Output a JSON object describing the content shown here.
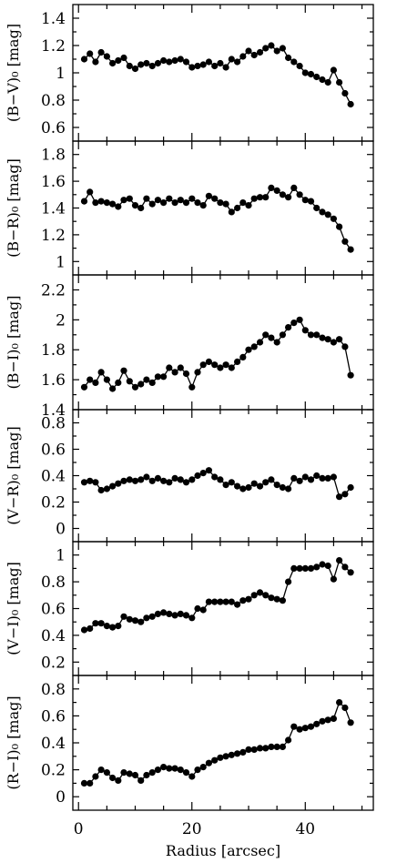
{
  "chart_data": [
    {
      "type": "line",
      "ylabel": "(B−V)₀ [mag]",
      "ylim": [
        0.5,
        1.5
      ],
      "yticks": [
        0.6,
        0.8,
        1,
        1.2,
        1.4
      ],
      "ytick_labels": [
        "0.6",
        "0.8",
        "1",
        "1.2",
        "1.4"
      ],
      "x": [
        1,
        2,
        3,
        4,
        5,
        6,
        7,
        8,
        9,
        10,
        11,
        12,
        13,
        14,
        15,
        16,
        17,
        18,
        19,
        20,
        21,
        22,
        23,
        24,
        25,
        26,
        27,
        28,
        29,
        30,
        31,
        32,
        33,
        34,
        35,
        36,
        37,
        38,
        39,
        40,
        41,
        42,
        43,
        44,
        45,
        46,
        47,
        48
      ],
      "values": [
        1.1,
        1.14,
        1.08,
        1.15,
        1.12,
        1.07,
        1.09,
        1.11,
        1.05,
        1.03,
        1.06,
        1.07,
        1.05,
        1.07,
        1.09,
        1.08,
        1.09,
        1.1,
        1.08,
        1.04,
        1.05,
        1.06,
        1.08,
        1.05,
        1.07,
        1.04,
        1.1,
        1.08,
        1.12,
        1.16,
        1.13,
        1.15,
        1.18,
        1.2,
        1.16,
        1.18,
        1.11,
        1.08,
        1.05,
        1.0,
        0.99,
        0.97,
        0.95,
        0.93,
        1.02,
        0.93,
        0.85,
        0.77
      ]
    },
    {
      "type": "line",
      "ylabel": "(B−R)₀ [mag]",
      "ylim": [
        0.9,
        1.9
      ],
      "yticks": [
        1,
        1.2,
        1.4,
        1.6,
        1.8
      ],
      "ytick_labels": [
        "1",
        "1.2",
        "1.4",
        "1.6",
        "1.8"
      ],
      "x": [
        1,
        2,
        3,
        4,
        5,
        6,
        7,
        8,
        9,
        10,
        11,
        12,
        13,
        14,
        15,
        16,
        17,
        18,
        19,
        20,
        21,
        22,
        23,
        24,
        25,
        26,
        27,
        28,
        29,
        30,
        31,
        32,
        33,
        34,
        35,
        36,
        37,
        38,
        39,
        40,
        41,
        42,
        43,
        44,
        45,
        46,
        47,
        48
      ],
      "values": [
        1.45,
        1.52,
        1.44,
        1.45,
        1.44,
        1.43,
        1.41,
        1.46,
        1.47,
        1.42,
        1.4,
        1.47,
        1.43,
        1.46,
        1.44,
        1.47,
        1.44,
        1.46,
        1.44,
        1.47,
        1.44,
        1.42,
        1.49,
        1.47,
        1.44,
        1.43,
        1.37,
        1.4,
        1.44,
        1.42,
        1.47,
        1.48,
        1.48,
        1.55,
        1.53,
        1.5,
        1.48,
        1.55,
        1.5,
        1.46,
        1.45,
        1.4,
        1.37,
        1.35,
        1.32,
        1.26,
        1.15,
        1.09
      ]
    },
    {
      "type": "line",
      "ylabel": "(B−I)₀ [mag]",
      "ylim": [
        1.4,
        2.3
      ],
      "yticks": [
        1.4,
        1.6,
        1.8,
        2,
        2.2
      ],
      "ytick_labels": [
        "1.4",
        "1.6",
        "1.8",
        "2",
        "2.2"
      ],
      "x": [
        1,
        2,
        3,
        4,
        5,
        6,
        7,
        8,
        9,
        10,
        11,
        12,
        13,
        14,
        15,
        16,
        17,
        18,
        19,
        20,
        21,
        22,
        23,
        24,
        25,
        26,
        27,
        28,
        29,
        30,
        31,
        32,
        33,
        34,
        35,
        36,
        37,
        38,
        39,
        40,
        41,
        42,
        43,
        44,
        45,
        46,
        47,
        48
      ],
      "values": [
        1.55,
        1.6,
        1.58,
        1.65,
        1.6,
        1.54,
        1.58,
        1.66,
        1.59,
        1.55,
        1.57,
        1.6,
        1.58,
        1.62,
        1.62,
        1.68,
        1.65,
        1.68,
        1.64,
        1.55,
        1.65,
        1.7,
        1.72,
        1.7,
        1.68,
        1.7,
        1.68,
        1.72,
        1.75,
        1.8,
        1.82,
        1.85,
        1.9,
        1.88,
        1.85,
        1.9,
        1.95,
        1.98,
        2.0,
        1.93,
        1.9,
        1.9,
        1.88,
        1.87,
        1.85,
        1.87,
        1.82,
        1.63
      ]
    },
    {
      "type": "line",
      "ylabel": "(V−R)₀ [mag]",
      "ylim": [
        -0.1,
        0.9
      ],
      "yticks": [
        0,
        0.2,
        0.4,
        0.6,
        0.8
      ],
      "ytick_labels": [
        "0",
        "0.2",
        "0.4",
        "0.6",
        "0.8"
      ],
      "x": [
        1,
        2,
        3,
        4,
        5,
        6,
        7,
        8,
        9,
        10,
        11,
        12,
        13,
        14,
        15,
        16,
        17,
        18,
        19,
        20,
        21,
        22,
        23,
        24,
        25,
        26,
        27,
        28,
        29,
        30,
        31,
        32,
        33,
        34,
        35,
        36,
        37,
        38,
        39,
        40,
        41,
        42,
        43,
        44,
        45,
        46,
        47,
        48
      ],
      "values": [
        0.35,
        0.36,
        0.35,
        0.29,
        0.3,
        0.32,
        0.34,
        0.36,
        0.37,
        0.36,
        0.37,
        0.39,
        0.36,
        0.38,
        0.36,
        0.35,
        0.38,
        0.37,
        0.35,
        0.37,
        0.4,
        0.42,
        0.44,
        0.39,
        0.37,
        0.33,
        0.35,
        0.32,
        0.3,
        0.31,
        0.34,
        0.32,
        0.35,
        0.37,
        0.33,
        0.31,
        0.3,
        0.38,
        0.36,
        0.39,
        0.37,
        0.4,
        0.38,
        0.38,
        0.39,
        0.24,
        0.26,
        0.31
      ]
    },
    {
      "type": "line",
      "ylabel": "(V−I)₀ [mag]",
      "ylim": [
        0.1,
        1.1
      ],
      "yticks": [
        0.2,
        0.4,
        0.6,
        0.8,
        1
      ],
      "ytick_labels": [
        "0.2",
        "0.4",
        "0.6",
        "0.8",
        "1"
      ],
      "x": [
        1,
        2,
        3,
        4,
        5,
        6,
        7,
        8,
        9,
        10,
        11,
        12,
        13,
        14,
        15,
        16,
        17,
        18,
        19,
        20,
        21,
        22,
        23,
        24,
        25,
        26,
        27,
        28,
        29,
        30,
        31,
        32,
        33,
        34,
        35,
        36,
        37,
        38,
        39,
        40,
        41,
        42,
        43,
        44,
        45,
        46,
        47,
        48
      ],
      "values": [
        0.44,
        0.45,
        0.49,
        0.49,
        0.47,
        0.46,
        0.47,
        0.54,
        0.52,
        0.51,
        0.5,
        0.53,
        0.54,
        0.56,
        0.57,
        0.56,
        0.55,
        0.56,
        0.55,
        0.53,
        0.6,
        0.59,
        0.65,
        0.65,
        0.65,
        0.65,
        0.65,
        0.63,
        0.66,
        0.67,
        0.7,
        0.72,
        0.7,
        0.68,
        0.67,
        0.66,
        0.8,
        0.9,
        0.9,
        0.9,
        0.9,
        0.91,
        0.93,
        0.92,
        0.82,
        0.96,
        0.91,
        0.87
      ]
    },
    {
      "type": "line",
      "ylabel": "(R−I)₀ [mag]",
      "xlabel": "Radius [arcsec]",
      "ylim": [
        -0.1,
        0.9
      ],
      "yticks": [
        0,
        0.2,
        0.4,
        0.6,
        0.8
      ],
      "ytick_labels": [
        "0",
        "0.2",
        "0.4",
        "0.6",
        "0.8"
      ],
      "xlim": [
        -1,
        52
      ],
      "xticks": [
        0,
        20,
        40
      ],
      "xtick_labels": [
        "0",
        "20",
        "40"
      ],
      "x": [
        1,
        2,
        3,
        4,
        5,
        6,
        7,
        8,
        9,
        10,
        11,
        12,
        13,
        14,
        15,
        16,
        17,
        18,
        19,
        20,
        21,
        22,
        23,
        24,
        25,
        26,
        27,
        28,
        29,
        30,
        31,
        32,
        33,
        34,
        35,
        36,
        37,
        38,
        39,
        40,
        41,
        42,
        43,
        44,
        45,
        46,
        47,
        48
      ],
      "values": [
        0.1,
        0.1,
        0.15,
        0.2,
        0.18,
        0.14,
        0.12,
        0.18,
        0.17,
        0.16,
        0.12,
        0.16,
        0.18,
        0.2,
        0.22,
        0.21,
        0.21,
        0.2,
        0.18,
        0.15,
        0.2,
        0.22,
        0.25,
        0.27,
        0.29,
        0.3,
        0.31,
        0.32,
        0.33,
        0.35,
        0.35,
        0.36,
        0.36,
        0.37,
        0.37,
        0.37,
        0.42,
        0.52,
        0.5,
        0.51,
        0.52,
        0.54,
        0.56,
        0.57,
        0.58,
        0.7,
        0.66,
        0.55
      ]
    }
  ]
}
